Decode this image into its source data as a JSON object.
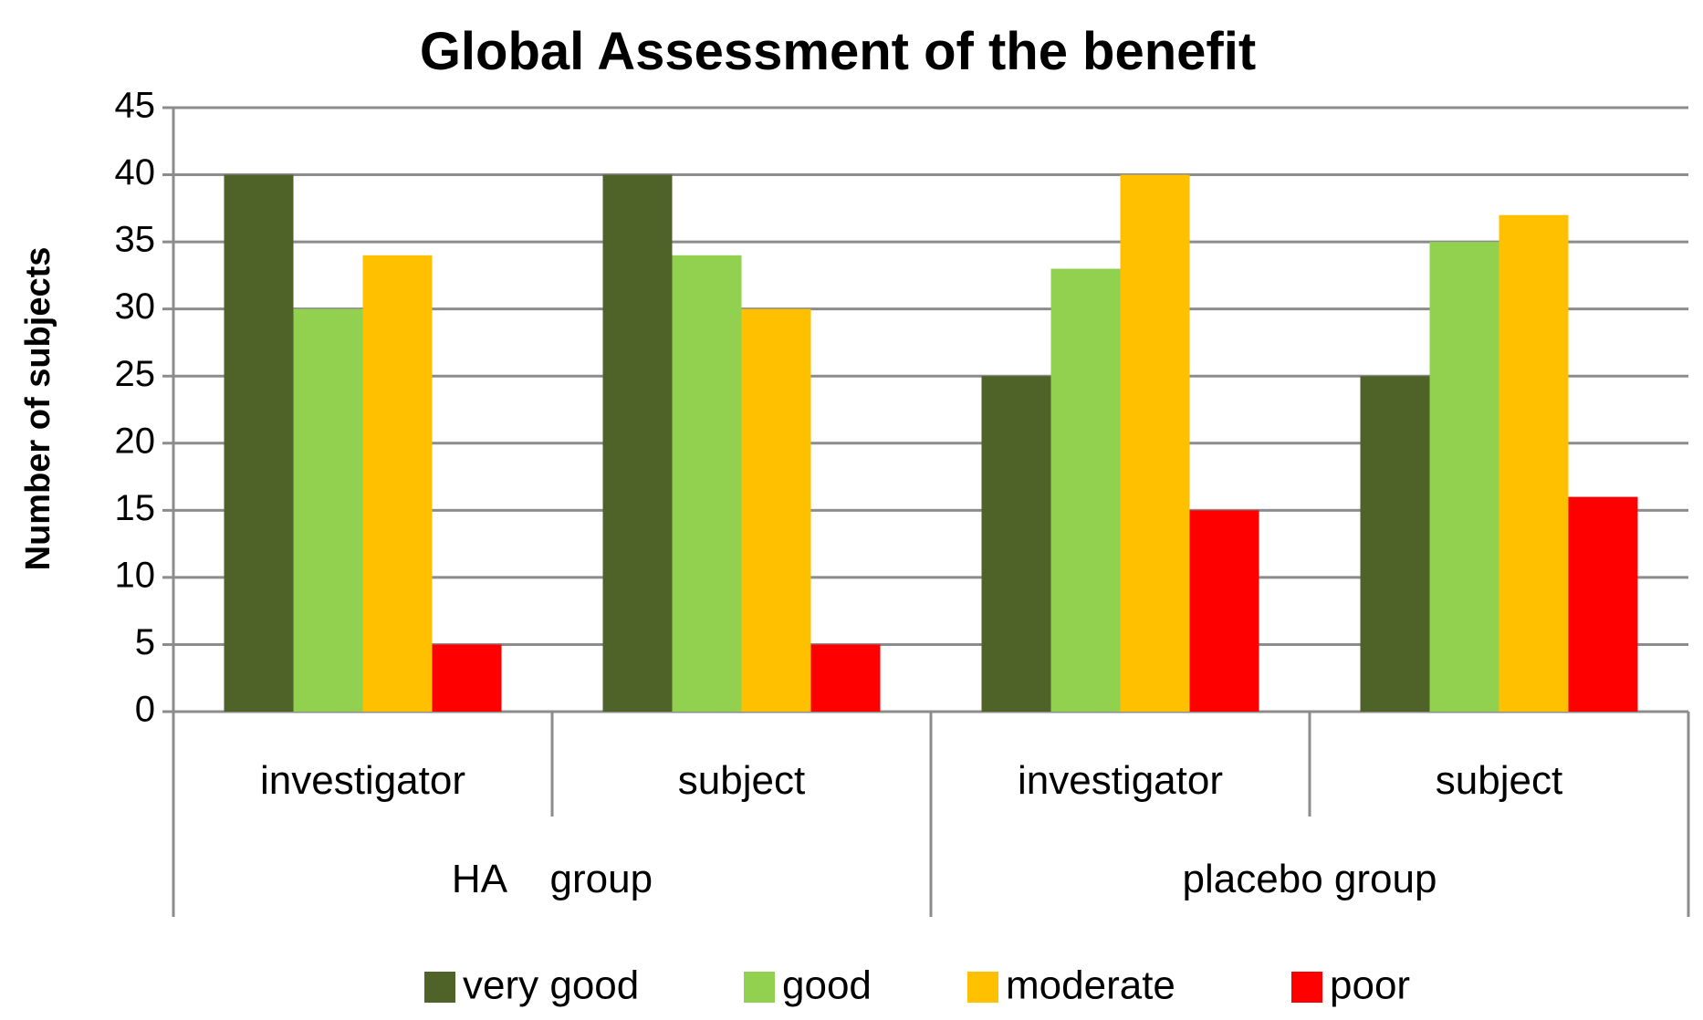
{
  "chart_data": {
    "type": "bar",
    "title": "Global Assessment of the benefit",
    "xlabel": "",
    "ylabel": "Number of subjects",
    "ylim": [
      0,
      45
    ],
    "yticks": [
      0,
      5,
      10,
      15,
      20,
      25,
      30,
      35,
      40,
      45
    ],
    "grid": true,
    "legend_position": "bottom",
    "categories": [
      "investigator",
      "subject",
      "investigator",
      "subject"
    ],
    "groups": [
      {
        "label": "HA    group",
        "categories": [
          "investigator",
          "subject"
        ]
      },
      {
        "label": "placebo group",
        "categories": [
          "investigator",
          "subject"
        ]
      }
    ],
    "series": [
      {
        "name": "very good",
        "color": "#4f6228",
        "values": [
          40,
          40,
          25,
          25
        ]
      },
      {
        "name": "good",
        "color": "#92d050",
        "values": [
          30,
          34,
          33,
          35
        ]
      },
      {
        "name": "moderate",
        "color": "#ffc000",
        "values": [
          34,
          30,
          40,
          37
        ]
      },
      {
        "name": "poor",
        "color": "#ff0000",
        "values": [
          5,
          5,
          15,
          16
        ]
      }
    ]
  }
}
